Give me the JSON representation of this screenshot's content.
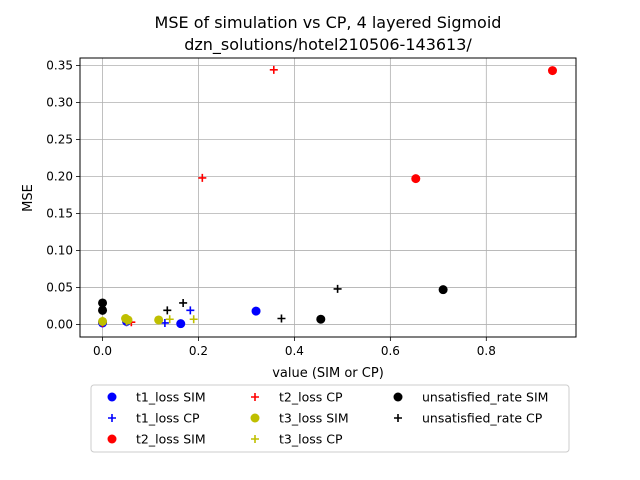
{
  "chart_data": {
    "type": "scatter",
    "title": "MSE of simulation vs CP, 4 layered Sigmoid",
    "subtitle": "dzn_solutions/hotel210506-143613/",
    "xlabel": "value (SIM or CP)",
    "ylabel": "MSE",
    "xlim": [
      -0.047,
      0.987
    ],
    "ylim": [
      -0.017,
      0.36
    ],
    "xticks": [
      0.0,
      0.2,
      0.4,
      0.6,
      0.8
    ],
    "xtick_labels": [
      "0.0",
      "0.2",
      "0.4",
      "0.6",
      "0.8"
    ],
    "yticks": [
      0.0,
      0.05,
      0.1,
      0.15,
      0.2,
      0.25,
      0.3,
      0.35
    ],
    "ytick_labels": [
      "0.00",
      "0.05",
      "0.10",
      "0.15",
      "0.20",
      "0.25",
      "0.30",
      "0.35"
    ],
    "grid": true,
    "legend_position": "below-center",
    "series": [
      {
        "name": "t1_loss SIM",
        "marker": "circle",
        "color": "#0000ff",
        "points": [
          [
            0.0,
            0.003
          ],
          [
            0.0,
            0.002
          ],
          [
            0.05,
            0.004
          ],
          [
            0.163,
            0.001
          ],
          [
            0.32,
            0.018
          ]
        ]
      },
      {
        "name": "t1_loss CP",
        "marker": "plus",
        "color": "#0000ff",
        "points": [
          [
            0.0,
            0.004
          ],
          [
            0.05,
            0.003
          ],
          [
            0.13,
            0.002
          ],
          [
            0.183,
            0.019
          ]
        ]
      },
      {
        "name": "t2_loss SIM",
        "marker": "circle",
        "color": "#ff0000",
        "points": [
          [
            0.653,
            0.197
          ],
          [
            0.938,
            0.343
          ]
        ]
      },
      {
        "name": "t2_loss CP",
        "marker": "plus",
        "color": "#ff0000",
        "points": [
          [
            0.0,
            0.002
          ],
          [
            0.06,
            0.003
          ],
          [
            0.208,
            0.198
          ],
          [
            0.357,
            0.344
          ]
        ]
      },
      {
        "name": "t3_loss SIM",
        "marker": "circle",
        "color": "#bfbf00",
        "points": [
          [
            0.0,
            0.004
          ],
          [
            0.048,
            0.008
          ],
          [
            0.053,
            0.006
          ],
          [
            0.117,
            0.006
          ]
        ]
      },
      {
        "name": "t3_loss CP",
        "marker": "plus",
        "color": "#bfbf00",
        "points": [
          [
            0.0,
            0.005
          ],
          [
            0.05,
            0.004
          ],
          [
            0.14,
            0.007
          ],
          [
            0.19,
            0.007
          ]
        ]
      },
      {
        "name": "unsatisfied_rate SIM",
        "marker": "circle",
        "color": "#000000",
        "points": [
          [
            0.0,
            0.029
          ],
          [
            0.0,
            0.019
          ],
          [
            0.455,
            0.007
          ],
          [
            0.71,
            0.047
          ]
        ]
      },
      {
        "name": "unsatisfied_rate CP",
        "marker": "plus",
        "color": "#000000",
        "points": [
          [
            0.0,
            0.028
          ],
          [
            0.135,
            0.019
          ],
          [
            0.168,
            0.029
          ],
          [
            0.373,
            0.008
          ],
          [
            0.49,
            0.048
          ]
        ]
      }
    ]
  }
}
